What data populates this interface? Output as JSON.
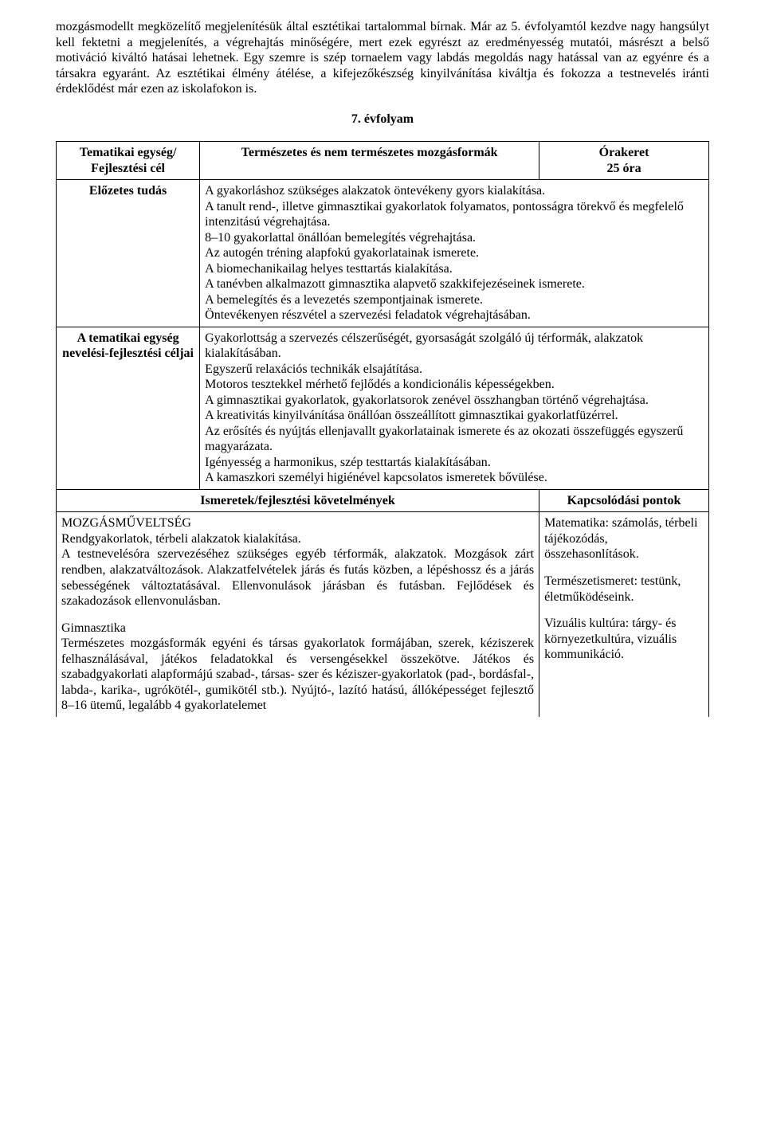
{
  "intro_paragraph": "mozgásmodellt megközelítő megjelenítésük által esztétikai tartalommal bírnak. Már az 5. évfolyamtól kezdve nagy hangsúlyt kell fektetni a megjelenítés, a végrehajtás minőségére, mert ezek egyrészt az eredményesség mutatói, másrészt a belső motiváció kiváltó hatásai lehetnek. Egy szemre is szép tornaelem vagy labdás megoldás nagy hatással van az egyénre és a társakra egyaránt. Az esztétikai élmény átélése, a kifejezőkészség kinyilvánítása kiváltja és fokozza a testnevelés iránti érdeklődést már ezen az iskolafokon is.",
  "grade_heading": "7. évfolyam",
  "labels": {
    "tematikai": "Tematikai egység/\nFejlesztési cél",
    "theme_title": "Természetes és nem természetes mozgásformák",
    "orakeret": "Órakeret\n25 óra",
    "elozetes": "Előzetes tudás",
    "celjai": "A tematikai egység nevelési-fejlesztési céljai",
    "ismeretek_head": "Ismeretek/fejlesztési követelmények",
    "kapcs_head": "Kapcsolódási pontok"
  },
  "elozetes_body": "A gyakorláshoz szükséges alakzatok öntevékeny gyors kialakítása.\nA tanult rend-, illetve gimnasztikai gyakorlatok folyamatos, pontosságra törekvő és megfelelő intenzitású végrehajtása.\n8–10 gyakorlattal önállóan bemelegítés végrehajtása.\nAz autogén tréning alapfokú gyakorlatainak ismerete.\nA biomechanikailag helyes testtartás kialakítása.\nA tanévben alkalmazott gimnasztika alapvető szakkifejezéseinek ismerete.\nA bemelegítés és a levezetés szempontjainak ismerete.\nÖntevékenyen részvétel a szervezési feladatok végrehajtásában.",
  "celjai_body": "Gyakorlottság a szervezés célszerűségét, gyorsaságát szolgáló új térformák, alakzatok kialakításában.\nEgyszerű relaxációs technikák elsajátítása.\nMotoros tesztekkel mérhető fejlődés a kondicionális képességekben.\nA gimnasztikai gyakorlatok, gyakorlatsorok zenével összhangban történő végrehajtása.\nA kreativitás kinyilvánítása önállóan összeállított gimnasztikai gyakorlatfüzérrel.\nAz erősítés és nyújtás ellenjavallt gyakorlatainak ismerete és az okozati összefüggés egyszerű magyarázata.\nIgényesség a harmonikus, szép testtartás kialakításában.\nA kamaszkori személyi higiénével kapcsolatos ismeretek bővülése.",
  "ismeretek_p1_title": "MOZGÁSMŰVELTSÉG",
  "ismeretek_p1": "Rendgyakorlatok, térbeli alakzatok kialakítása.\nA testnevelésóra szervezéséhez szükséges egyéb térformák, alakzatok. Mozgások zárt rendben, alakzatváltozások. Alakzatfelvételek járás és futás közben, a lépéshossz és a járás sebességének változtatásával. Ellenvonulások járásban és futásban. Fejlődések és szakadozások ellenvonulásban.",
  "ismeretek_p2_title": "Gimnasztika",
  "ismeretek_p2": "Természetes mozgásformák egyéni és társas gyakorlatok formájában, szerek, kéziszerek felhasználásával, játékos feladatokkal és versengésekkel összekötve. Játékos és szabadgyakorlati alapformájú szabad-, társas- szer és kéziszer-gyakorlatok (pad-, bordásfal-, labda-, karika-, ugrókötél-, gumikötél stb.). Nyújtó-, lazító hatású, állóképességet fejlesztő 8–16 ütemű, legalább 4 gyakorlatelemet",
  "kapcs_p1": "Matematika: számolás, térbeli tájékozódás, összehasonlítások.",
  "kapcs_p2": "Természetismeret: testünk, életműködéseink.",
  "kapcs_p3": "Vizuális kultúra: tárgy- és környezetkultúra, vizuális kommunikáció."
}
